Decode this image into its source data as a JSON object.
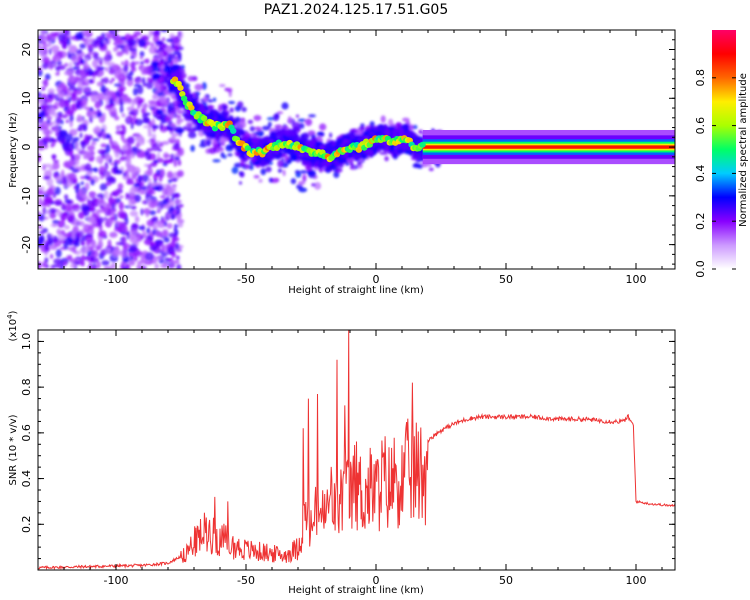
{
  "title": "PAZ1.2024.125.17.51.G05",
  "chart_data": [
    {
      "type": "heatmap",
      "xlabel": "Height of straight line (km)",
      "ylabel": "Frequency (Hz)",
      "xlim": [
        -130,
        115
      ],
      "ylim": [
        -25,
        24
      ],
      "xticks": [
        -100,
        -50,
        0,
        50,
        100
      ],
      "yticks": [
        -20,
        -10,
        0,
        10,
        20
      ],
      "ridge": [
        {
          "x": -77,
          "f": 14
        },
        {
          "x": -74,
          "f": 10
        },
        {
          "x": -70,
          "f": 7
        },
        {
          "x": -65,
          "f": 5
        },
        {
          "x": -60,
          "f": 4
        },
        {
          "x": -57,
          "f": 5
        },
        {
          "x": -53,
          "f": 1
        },
        {
          "x": -48,
          "f": -1
        },
        {
          "x": -44,
          "f": -1
        },
        {
          "x": -40,
          "f": 0
        },
        {
          "x": -35,
          "f": 1
        },
        {
          "x": -30,
          "f": 0
        },
        {
          "x": -27,
          "f": -1
        },
        {
          "x": -22,
          "f": -1
        },
        {
          "x": -18,
          "f": -2
        },
        {
          "x": -14,
          "f": -1
        },
        {
          "x": -10,
          "f": 0
        },
        {
          "x": -6,
          "f": 0
        },
        {
          "x": -2,
          "f": 1
        },
        {
          "x": 2,
          "f": 2
        },
        {
          "x": 7,
          "f": 1
        },
        {
          "x": 11,
          "f": 2
        },
        {
          "x": 15,
          "f": 0
        },
        {
          "x": 20,
          "f": 0
        },
        {
          "x": 30,
          "f": 0
        },
        {
          "x": 60,
          "f": 0
        },
        {
          "x": 90,
          "f": 0
        },
        {
          "x": 115,
          "f": 0
        }
      ],
      "colorbar": {
        "label": "Normalized spectral amplitude",
        "ticks": [
          "0.0",
          "0.2",
          "0.4",
          "0.6",
          "0.8"
        ],
        "range": [
          0,
          1
        ],
        "colors": [
          "#ffffff",
          "#cc99ff",
          "#8800ff",
          "#0000ff",
          "#00ccff",
          "#00ff66",
          "#aaff00",
          "#ffee00",
          "#ff6600",
          "#ff0000",
          "#ff0066"
        ]
      }
    },
    {
      "type": "line",
      "xlabel": "Height of straight line (km)",
      "ylabel": "SNR (10 * v/v)",
      "yexp": "(x10",
      "yexp_sup": "4",
      "yexp_close": ")",
      "xlim": [
        -130,
        115
      ],
      "ylim": [
        0,
        1.05
      ],
      "xticks": [
        -100,
        -50,
        0,
        50,
        100
      ],
      "yticks": [
        "0.2",
        "0.4",
        "0.6",
        "0.8",
        "1.0"
      ],
      "color": "#ee3333",
      "series": {
        "values_x": [
          -130,
          -110,
          -90,
          -80,
          -75,
          -70,
          -65,
          -62,
          -58,
          -55,
          -50,
          -45,
          -40,
          -35,
          -30,
          -27,
          -25,
          -22,
          -20,
          -17,
          -15,
          -12,
          -10,
          -8,
          -5,
          -2,
          0,
          3,
          5,
          8,
          10,
          13,
          16,
          20,
          25,
          30,
          35,
          40,
          50,
          60,
          70,
          80,
          90,
          95,
          97,
          99,
          100,
          105,
          110,
          115
        ],
        "values_y": [
          0.01,
          0.015,
          0.02,
          0.03,
          0.06,
          0.15,
          0.22,
          0.18,
          0.16,
          0.13,
          0.11,
          0.1,
          0.09,
          0.08,
          0.12,
          0.3,
          0.22,
          0.35,
          0.28,
          0.4,
          0.32,
          0.45,
          0.38,
          0.48,
          0.4,
          0.44,
          0.42,
          0.5,
          0.45,
          0.52,
          0.48,
          0.55,
          0.52,
          0.57,
          0.61,
          0.64,
          0.66,
          0.67,
          0.67,
          0.67,
          0.66,
          0.66,
          0.65,
          0.65,
          0.67,
          0.63,
          0.3,
          0.29,
          0.285,
          0.28
        ]
      },
      "spikes": [
        {
          "x": -10.5,
          "y": 1.05
        },
        {
          "x": -12,
          "y": 0.72
        },
        {
          "x": -15,
          "y": 0.92
        },
        {
          "x": 14,
          "y": 0.82
        },
        {
          "x": -22.5,
          "y": 0.77
        },
        {
          "x": -26,
          "y": 0.75
        },
        {
          "x": -28,
          "y": 0.62
        },
        {
          "x": -62,
          "y": 0.32
        },
        {
          "x": -57,
          "y": 0.3
        }
      ]
    }
  ]
}
